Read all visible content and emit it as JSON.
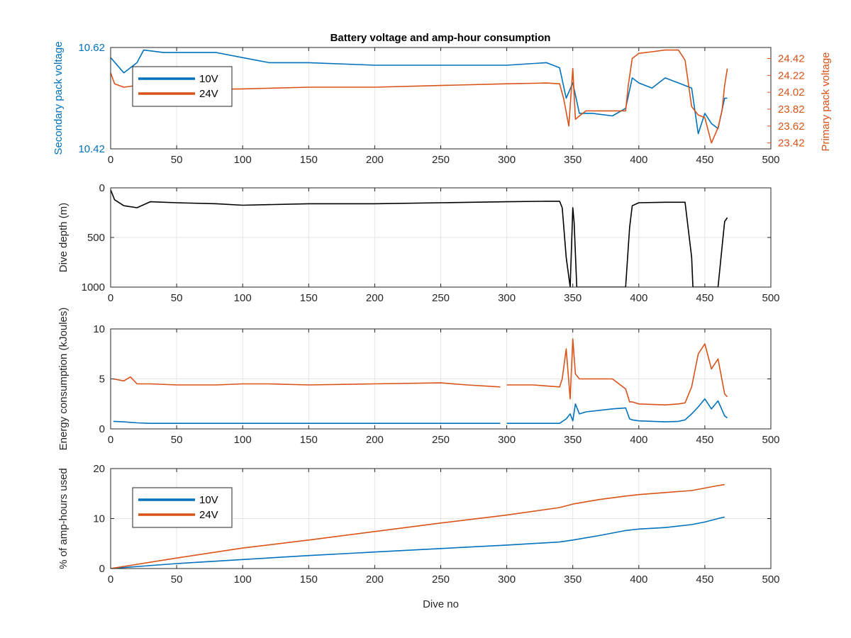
{
  "title": "Battery voltage and amp-hour consumption",
  "colors": {
    "s10V": "#0072BD",
    "s24V": "#D95319",
    "depth": "#000000",
    "grid": "#e6e6e6",
    "axis": "#262626"
  },
  "chart_data": [
    {
      "type": "line",
      "title": "Battery voltage and amp-hour consumption",
      "xlabel": "",
      "xlim": [
        0,
        500
      ],
      "xticks": [
        "0",
        "50",
        "100",
        "150",
        "200",
        "250",
        "300",
        "350",
        "400",
        "450",
        "500"
      ],
      "ylabel_left": "Secondary pack voltage",
      "ylim_left": [
        10.42,
        10.62
      ],
      "yticks_left": [
        "10.42",
        "10.62"
      ],
      "ylabel_right": "Primary pack voltage",
      "ylim_right": [
        23.35,
        24.55
      ],
      "yticks_right": [
        "23.42",
        "23.62",
        "23.82",
        "24.02",
        "24.22",
        "24.42"
      ],
      "legend": {
        "placement": "top-left",
        "entries": [
          "10V",
          "24V"
        ]
      },
      "grid": true,
      "series": [
        {
          "name": "10V",
          "axis": "left",
          "x": [
            0,
            10,
            20,
            25,
            40,
            60,
            80,
            100,
            120,
            150,
            200,
            250,
            300,
            330,
            340,
            345,
            350,
            355,
            365,
            380,
            390,
            395,
            400,
            410,
            420,
            430,
            440,
            445,
            450,
            455,
            460,
            465,
            467
          ],
          "y": [
            10.6,
            10.57,
            10.59,
            10.615,
            10.61,
            10.61,
            10.61,
            10.6,
            10.59,
            10.59,
            10.585,
            10.585,
            10.585,
            10.59,
            10.58,
            10.52,
            10.55,
            10.49,
            10.49,
            10.485,
            10.5,
            10.56,
            10.55,
            10.54,
            10.56,
            10.55,
            10.54,
            10.45,
            10.49,
            10.47,
            10.46,
            10.52,
            10.52
          ]
        },
        {
          "name": "24V",
          "axis": "right",
          "x": [
            0,
            3,
            10,
            20,
            30,
            50,
            100,
            150,
            200,
            250,
            300,
            330,
            340,
            343,
            347,
            350,
            352,
            355,
            360,
            370,
            380,
            390,
            392,
            395,
            400,
            410,
            420,
            430,
            435,
            440,
            445,
            450,
            455,
            460,
            463,
            465,
            467
          ],
          "y": [
            24.25,
            24.12,
            24.08,
            24.1,
            24.05,
            24.05,
            24.06,
            24.08,
            24.08,
            24.1,
            24.12,
            24.13,
            24.12,
            23.95,
            23.62,
            24.3,
            23.7,
            23.74,
            23.8,
            23.8,
            23.8,
            23.8,
            24.1,
            24.42,
            24.48,
            24.5,
            24.52,
            24.52,
            24.4,
            23.85,
            23.75,
            23.72,
            23.42,
            23.6,
            23.8,
            24.1,
            24.3
          ]
        }
      ]
    },
    {
      "type": "line",
      "title": "",
      "xlabel": "",
      "xlim": [
        0,
        500
      ],
      "xticks": [
        "0",
        "50",
        "100",
        "150",
        "200",
        "250",
        "300",
        "350",
        "400",
        "450",
        "500"
      ],
      "ylabel": "Dive depth (m)",
      "ylim": [
        0,
        1000
      ],
      "yreverse": true,
      "yticks": [
        "0",
        "500",
        "1000"
      ],
      "grid": true,
      "series": [
        {
          "name": "",
          "x": [
            0,
            3,
            10,
            20,
            30,
            50,
            80,
            100,
            150,
            200,
            250,
            300,
            330,
            340,
            342,
            345,
            348,
            350,
            351,
            353,
            355,
            360,
            380,
            390,
            393,
            395,
            400,
            420,
            435,
            440,
            441,
            445,
            450,
            460,
            463,
            465,
            467
          ],
          "y": [
            20,
            120,
            180,
            200,
            140,
            150,
            160,
            175,
            160,
            160,
            150,
            140,
            135,
            135,
            200,
            700,
            1000,
            200,
            350,
            1000,
            1000,
            1000,
            1000,
            1000,
            400,
            180,
            150,
            145,
            145,
            700,
            1000,
            1000,
            1000,
            1000,
            600,
            340,
            300
          ]
        }
      ]
    },
    {
      "type": "line",
      "title": "",
      "xlabel": "",
      "xlim": [
        0,
        500
      ],
      "xticks": [
        "0",
        "50",
        "100",
        "150",
        "200",
        "250",
        "300",
        "350",
        "400",
        "450",
        "500"
      ],
      "ylabel": "Energy consumption (kJoules)",
      "ylim": [
        0,
        10
      ],
      "yticks": [
        "0",
        "5",
        "10"
      ],
      "grid": true,
      "series": [
        {
          "name": "24V",
          "x": [
            2,
            10,
            15,
            20,
            30,
            50,
            80,
            100,
            120,
            150,
            200,
            250,
            270,
            295,
            298,
            300,
            320,
            340,
            342,
            345,
            348,
            350,
            352,
            355,
            360,
            380,
            390,
            393,
            395,
            400,
            420,
            430,
            435,
            440,
            445,
            450,
            455,
            460,
            465,
            467
          ],
          "y": [
            5,
            4.8,
            5.2,
            4.5,
            4.5,
            4.4,
            4.4,
            4.5,
            4.5,
            4.4,
            4.5,
            4.6,
            4.4,
            4.2,
            null,
            4.4,
            4.4,
            4.2,
            5,
            8,
            3,
            9,
            5.5,
            5,
            5,
            5,
            4,
            2.7,
            2.7,
            2.5,
            2.4,
            2.5,
            2.6,
            4.2,
            7.5,
            8.5,
            6,
            7,
            3.5,
            3.2
          ]
        },
        {
          "name": "10V",
          "x": [
            2,
            10,
            15,
            20,
            30,
            50,
            100,
            150,
            200,
            250,
            295,
            298,
            300,
            340,
            345,
            348,
            350,
            352,
            355,
            360,
            380,
            390,
            393,
            395,
            400,
            420,
            430,
            435,
            440,
            445,
            450,
            455,
            460,
            465,
            467
          ],
          "y": [
            0.75,
            0.7,
            0.65,
            0.6,
            0.55,
            0.55,
            0.55,
            0.55,
            0.55,
            0.55,
            0.55,
            null,
            0.55,
            0.55,
            1,
            1.5,
            0.8,
            2.5,
            1.5,
            1.7,
            2,
            2.1,
            1,
            0.9,
            0.8,
            0.7,
            0.75,
            0.9,
            1.5,
            2.2,
            3,
            2,
            2.8,
            1.3,
            1.1
          ]
        }
      ]
    },
    {
      "type": "line",
      "title": "",
      "xlabel": "Dive no",
      "xlim": [
        0,
        500
      ],
      "xticks": [
        "0",
        "50",
        "100",
        "150",
        "200",
        "250",
        "300",
        "350",
        "400",
        "450",
        "500"
      ],
      "ylabel": "% of amp-hours used",
      "ylim": [
        0,
        20
      ],
      "yticks": [
        "0",
        "10",
        "20"
      ],
      "legend": {
        "placement": "top-left",
        "entries": [
          "10V",
          "24V"
        ]
      },
      "grid": true,
      "series": [
        {
          "name": "10V",
          "x": [
            0,
            50,
            100,
            150,
            200,
            250,
            300,
            340,
            350,
            370,
            390,
            400,
            420,
            440,
            450,
            460,
            465
          ],
          "y": [
            0,
            1,
            1.8,
            2.6,
            3.3,
            4,
            4.7,
            5.3,
            5.7,
            6.6,
            7.6,
            7.9,
            8.2,
            8.8,
            9.3,
            10,
            10.3
          ]
        },
        {
          "name": "24V",
          "x": [
            0,
            50,
            100,
            150,
            200,
            250,
            300,
            340,
            350,
            370,
            390,
            400,
            420,
            440,
            450,
            460,
            465
          ],
          "y": [
            0,
            2.1,
            4.1,
            5.7,
            7.4,
            9.1,
            10.7,
            12.2,
            12.9,
            13.8,
            14.5,
            14.8,
            15.2,
            15.6,
            16.1,
            16.6,
            16.8
          ]
        }
      ]
    }
  ]
}
